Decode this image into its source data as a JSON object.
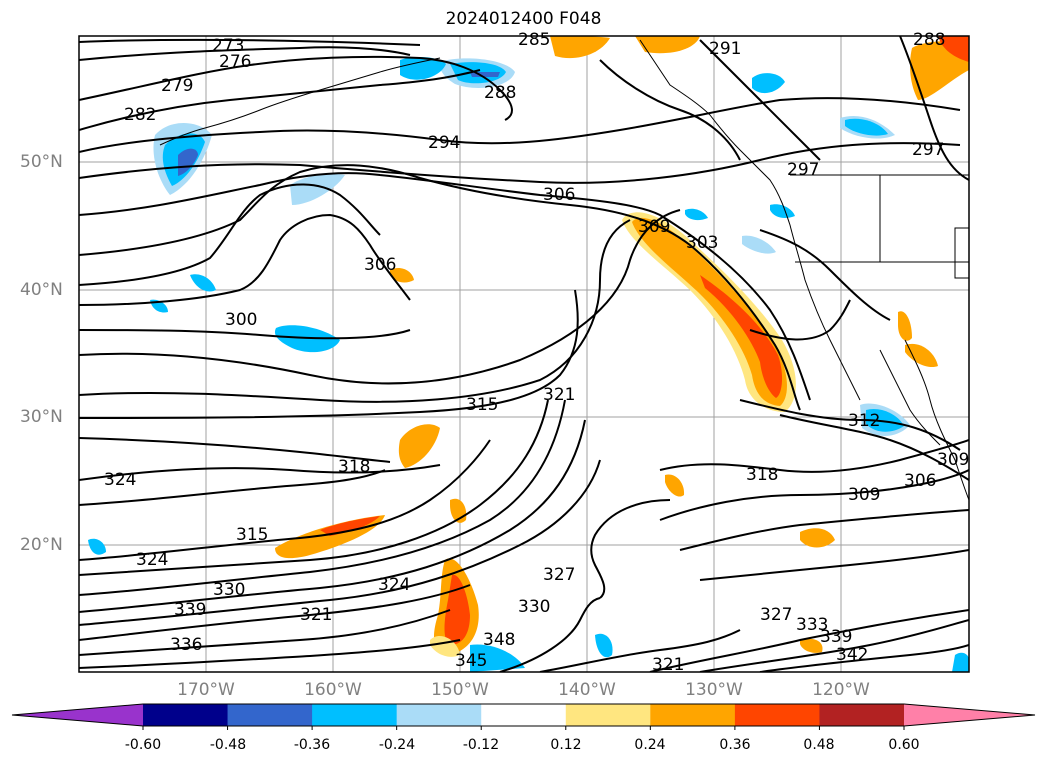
{
  "title": "2024012400 F048",
  "latitude_labels": [
    "50°N",
    "40°N",
    "30°N",
    "20°N"
  ],
  "longitude_labels": [
    "170°W",
    "160°W",
    "150°W",
    "140°W",
    "130°W",
    "120°W"
  ],
  "contour_labels": [
    "273",
    "276",
    "279",
    "282",
    "285",
    "288",
    "288",
    "291",
    "294",
    "297",
    "297",
    "300",
    "303",
    "306",
    "306",
    "306",
    "309",
    "309",
    "309",
    "312",
    "315",
    "315",
    "318",
    "318",
    "321",
    "321",
    "321",
    "324",
    "324",
    "324",
    "327",
    "327",
    "330",
    "330",
    "333",
    "336",
    "339",
    "339",
    "342",
    "345",
    "348"
  ],
  "colorbar": {
    "ticks": [
      "-0.60",
      "-0.48",
      "-0.36",
      "-0.24",
      "-0.12",
      "0.12",
      "0.24",
      "0.36",
      "0.48",
      "0.60"
    ],
    "colors": [
      "#9933cc",
      "#00008b",
      "#3366cc",
      "#00bfff",
      "#aadcf7",
      "#ffffff",
      "#ffe680",
      "#ffa500",
      "#ff4500",
      "#b22222",
      "#ff80a8"
    ]
  }
}
